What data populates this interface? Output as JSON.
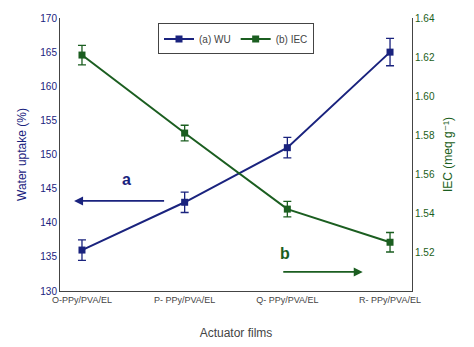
{
  "chart_data": {
    "type": "line",
    "xlabel": "Actuator films",
    "ylabel": "Water uptake (%)",
    "y2label": "IEC (meq g⁻¹)",
    "categories": [
      "O-PPy/PVA/EL",
      "P- PPy/PVA/EL",
      "Q- PPy/PVA/EL",
      "R- PPy/PVA/EL"
    ],
    "series": [
      {
        "name": "(a) WU",
        "color": "#1a237e",
        "marker": "square",
        "values": [
          136,
          143,
          151,
          165
        ],
        "errors": [
          1.5,
          1.5,
          1.5,
          2.0
        ]
      },
      {
        "name": "(b) IEC",
        "color": "#1b5e20",
        "marker": "square",
        "axis": "y2",
        "values": [
          1.621,
          1.581,
          1.542,
          1.525
        ],
        "errors": [
          0.005,
          0.004,
          0.004,
          0.005
        ]
      }
    ],
    "ylim": [
      130,
      170
    ],
    "yticks": [
      130,
      135,
      140,
      145,
      150,
      155,
      160,
      165,
      170
    ],
    "y2lim": [
      1.5,
      1.64
    ],
    "y2ticks": [
      1.52,
      1.54,
      1.56,
      1.58,
      {
        "value": 1.6,
        "label": "1.60"
      },
      1.62,
      1.64
    ],
    "legend": "upper center",
    "grid": false,
    "annotations": [
      {
        "text": "a",
        "color": "#1a237e"
      },
      {
        "text": "b",
        "color": "#1b5e20"
      }
    ]
  }
}
